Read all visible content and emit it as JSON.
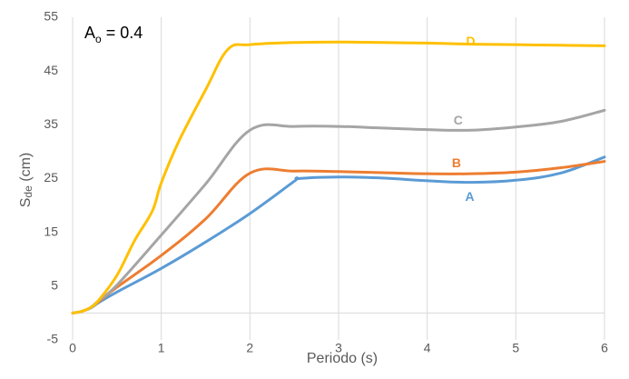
{
  "chart_data": {
    "type": "line",
    "title": "",
    "annotation": {
      "main": "A",
      "sub": "o",
      "rest": " = 0.4"
    },
    "xlabel": "Periodo (s)",
    "ylabel": {
      "main": "S",
      "sub": "de",
      "rest": " (cm)"
    },
    "xlim": [
      0,
      6
    ],
    "ylim": [
      -5,
      55
    ],
    "xticks": [
      0,
      1,
      2,
      3,
      4,
      5,
      6
    ],
    "xtick_labels": [
      "0",
      "1",
      "2",
      "3",
      "4",
      "5",
      "6"
    ],
    "yticks": [
      -5,
      5,
      15,
      25,
      35,
      45,
      55
    ],
    "ytick_labels": [
      "-5",
      "5",
      "15",
      "25",
      "35",
      "45",
      "55"
    ],
    "grid": "vertical",
    "series": [
      {
        "name": "A",
        "color": "#5B9BD5",
        "label_pos": [
          4.48,
          21.5
        ],
        "points": [
          [
            0,
            0
          ],
          [
            0.1,
            0.3
          ],
          [
            0.2,
            0.9
          ],
          [
            0.3,
            2.0
          ],
          [
            0.5,
            3.9
          ],
          [
            1.0,
            8.3
          ],
          [
            1.5,
            13.2
          ],
          [
            2.0,
            18.5
          ],
          [
            2.5,
            24.5
          ],
          [
            2.55,
            25.0
          ],
          [
            3.0,
            25.3
          ],
          [
            3.5,
            25.1
          ],
          [
            4.0,
            24.6
          ],
          [
            4.5,
            24.3
          ],
          [
            5.0,
            24.7
          ],
          [
            5.5,
            26.0
          ],
          [
            6.0,
            29.0
          ]
        ]
      },
      {
        "name": "B",
        "color": "#ED7D31",
        "label_pos": [
          4.33,
          27.7
        ],
        "points": [
          [
            0,
            0
          ],
          [
            0.1,
            0.3
          ],
          [
            0.2,
            1.0
          ],
          [
            0.3,
            2.2
          ],
          [
            0.5,
            4.8
          ],
          [
            1.0,
            10.7
          ],
          [
            1.5,
            17.5
          ],
          [
            2.0,
            26.0
          ],
          [
            2.5,
            26.4
          ],
          [
            3.0,
            26.3
          ],
          [
            3.5,
            26.1
          ],
          [
            4.0,
            25.9
          ],
          [
            4.5,
            25.9
          ],
          [
            5.0,
            26.2
          ],
          [
            5.5,
            27.0
          ],
          [
            6.0,
            28.2
          ]
        ]
      },
      {
        "name": "C",
        "color": "#A5A5A5",
        "label_pos": [
          4.35,
          35.7
        ],
        "points": [
          [
            0,
            0
          ],
          [
            0.1,
            0.3
          ],
          [
            0.2,
            1.0
          ],
          [
            0.3,
            2.4
          ],
          [
            0.5,
            5.2
          ],
          [
            1.0,
            14.5
          ],
          [
            1.5,
            24.0
          ],
          [
            2.0,
            34.0
          ],
          [
            2.5,
            34.7
          ],
          [
            3.0,
            34.7
          ],
          [
            3.5,
            34.4
          ],
          [
            4.0,
            34.1
          ],
          [
            4.5,
            34.0
          ],
          [
            5.0,
            34.6
          ],
          [
            5.5,
            35.6
          ],
          [
            6.0,
            37.7
          ]
        ]
      },
      {
        "name": "D",
        "color": "#FFC000",
        "label_pos": [
          4.49,
          50.4
        ],
        "points": [
          [
            0,
            0
          ],
          [
            0.1,
            0.3
          ],
          [
            0.2,
            1.0
          ],
          [
            0.3,
            2.5
          ],
          [
            0.5,
            7.0
          ],
          [
            0.7,
            13.5
          ],
          [
            0.9,
            19.0
          ],
          [
            1.0,
            24.2
          ],
          [
            1.2,
            32.0
          ],
          [
            1.5,
            41.5
          ],
          [
            1.75,
            49.0
          ],
          [
            2.0,
            49.9
          ],
          [
            2.5,
            50.3
          ],
          [
            3.0,
            50.4
          ],
          [
            3.5,
            50.3
          ],
          [
            4.0,
            50.2
          ],
          [
            4.5,
            50.0
          ],
          [
            5.0,
            49.9
          ],
          [
            5.5,
            49.8
          ],
          [
            6.0,
            49.7
          ]
        ]
      }
    ]
  }
}
